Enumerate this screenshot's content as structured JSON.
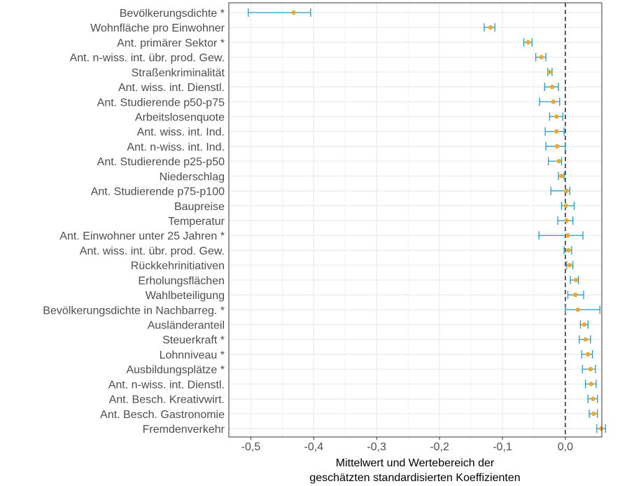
{
  "chart_data": {
    "type": "scatter",
    "subtype": "dot-and-errorbar (forest plot)",
    "orientation": "horizontal",
    "title": "",
    "xlabel_lines": [
      "Mittelwert und Wertebereich der",
      "geschätzten standardisierten Koeffizienten"
    ],
    "ylabel": "",
    "xlim": [
      -0.535,
      0.058
    ],
    "x_ticks": [
      -0.5,
      -0.4,
      -0.3,
      -0.2,
      -0.1,
      0.0
    ],
    "x_tick_labels": [
      "-0,5",
      "-0,4",
      "-0,3",
      "-0,2",
      "-0,1",
      "0,0"
    ],
    "reference_line": {
      "x": 0.0,
      "style": "dashed"
    },
    "grid": true,
    "colors": {
      "point": "#f5a623",
      "errorbar": "#1a9fd4",
      "grid": "#ebebeb",
      "panel_border": "#333333",
      "reference_line": "#333333"
    },
    "series": [
      {
        "name": "",
        "categories": [
          "Bevölkerungsdichte *",
          "Wohnfläche pro Einwohner",
          "Ant. primärer Sektor *",
          "Ant. n-wiss. int. übr. prod. Gew.",
          "Straßenkriminalität",
          "Ant. wiss. int. Dienstl.",
          "Ant. Studierende p50-p75",
          "Arbeitslosenquote",
          "Ant. wiss. int. Ind.",
          "Ant. n-wiss. int. Ind.",
          "Ant. Studierende p25-p50",
          "Niederschlag",
          "Ant. Studierende p75-p100",
          "Baupreise",
          "Temperatur",
          "Ant. Einwohner unter 25 Jahren *",
          "Ant. wiss. int. übr. prod. Gew.",
          "Rückkehrinitiativen",
          "Erholungsflächen",
          "Wahlbeteiligung",
          "Bevölkerungsdichte in Nachbarreg. *",
          "Ausländeranteil",
          "Steuerkraft *",
          "Lohnniveau *",
          "Ausbildungsplätze *",
          "Ant. n-wiss. int. Dienstl.",
          "Ant. Besch. Kreativwirt.",
          "Ant. Besch. Gastronomie",
          "Fremdenverkehr"
        ],
        "mean": [
          -0.432,
          -0.119,
          -0.059,
          -0.038,
          -0.025,
          -0.021,
          -0.019,
          -0.014,
          -0.014,
          -0.013,
          -0.01,
          -0.006,
          0.002,
          0.001,
          0.002,
          0.004,
          0.005,
          0.007,
          0.017,
          0.016,
          0.02,
          0.03,
          0.032,
          0.036,
          0.04,
          0.041,
          0.044,
          0.045,
          0.057
        ],
        "low": [
          -0.504,
          -0.129,
          -0.066,
          -0.047,
          -0.028,
          -0.033,
          -0.041,
          -0.025,
          -0.032,
          -0.031,
          -0.027,
          -0.011,
          -0.023,
          -0.006,
          -0.012,
          -0.042,
          -0.002,
          0.002,
          0.008,
          0.004,
          0.0,
          0.024,
          0.022,
          0.026,
          0.027,
          0.032,
          0.036,
          0.038,
          0.05
        ],
        "high": [
          -0.405,
          -0.112,
          -0.053,
          -0.031,
          -0.021,
          -0.011,
          -0.009,
          -0.004,
          -0.002,
          0.0,
          -0.006,
          -0.002,
          0.007,
          0.014,
          0.012,
          0.028,
          0.01,
          0.012,
          0.021,
          0.029,
          0.055,
          0.036,
          0.04,
          0.043,
          0.048,
          0.049,
          0.051,
          0.051,
          0.064
        ]
      }
    ]
  }
}
